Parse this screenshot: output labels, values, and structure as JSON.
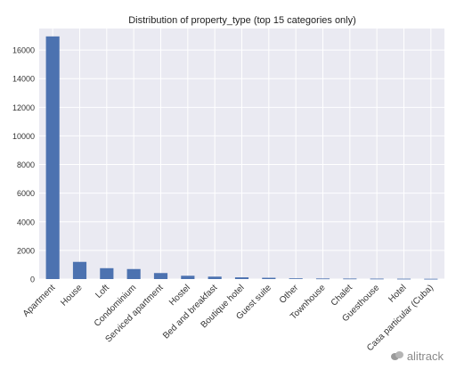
{
  "chart_data": {
    "type": "bar",
    "title": "Distribution of property_type (top 15 categories only)",
    "xlabel": "",
    "ylabel": "",
    "categories": [
      "Apartment",
      "House",
      "Loft",
      "Condominium",
      "Serviced apartment",
      "Hostel",
      "Bed and breakfast",
      "Boutique hotel",
      "Guest suite",
      "Other",
      "Townhouse",
      "Chalet",
      "Guesthouse",
      "Hotel",
      "Casa particular (Cuba)"
    ],
    "values": [
      16950,
      1200,
      760,
      700,
      420,
      230,
      170,
      120,
      90,
      50,
      40,
      35,
      30,
      25,
      20
    ],
    "ylim": [
      0,
      17500
    ],
    "yticks": [
      0,
      2000,
      4000,
      6000,
      8000,
      10000,
      12000,
      14000,
      16000
    ],
    "grid": true,
    "bar_color": "#4c72b0",
    "plot_background": "#eaeaf2"
  },
  "watermark": {
    "text": "alitrack",
    "icon": "chat-bubbles-icon"
  }
}
